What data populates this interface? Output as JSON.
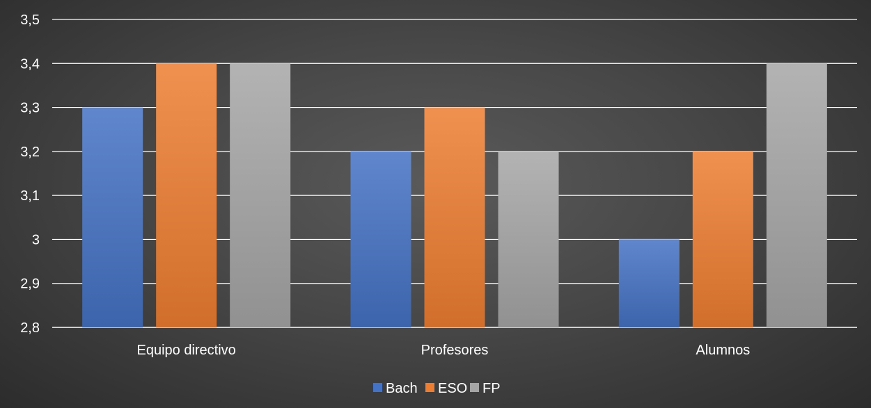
{
  "chart_data": {
    "type": "bar",
    "categories": [
      "Equipo directivo",
      "Profesores",
      "Alumnos"
    ],
    "series": [
      {
        "name": "Bach",
        "values": [
          3.3,
          3.2,
          3.0
        ],
        "color": "#4472c4"
      },
      {
        "name": "ESO",
        "values": [
          3.4,
          3.3,
          3.2
        ],
        "color": "#ed7d31"
      },
      {
        "name": "FP",
        "values": [
          3.4,
          3.2,
          3.4
        ],
        "color": "#a5a5a5"
      }
    ],
    "title": "",
    "xlabel": "",
    "ylabel": "",
    "ylim": [
      2.8,
      3.5
    ],
    "yticks": [
      2.8,
      2.9,
      3.0,
      3.1,
      3.2,
      3.3,
      3.4,
      3.5
    ],
    "ytick_labels": [
      "2,8",
      "2,9",
      "3",
      "3,1",
      "3,2",
      "3,3",
      "3,4",
      "3,5"
    ],
    "grid": true,
    "legend_position": "bottom"
  }
}
